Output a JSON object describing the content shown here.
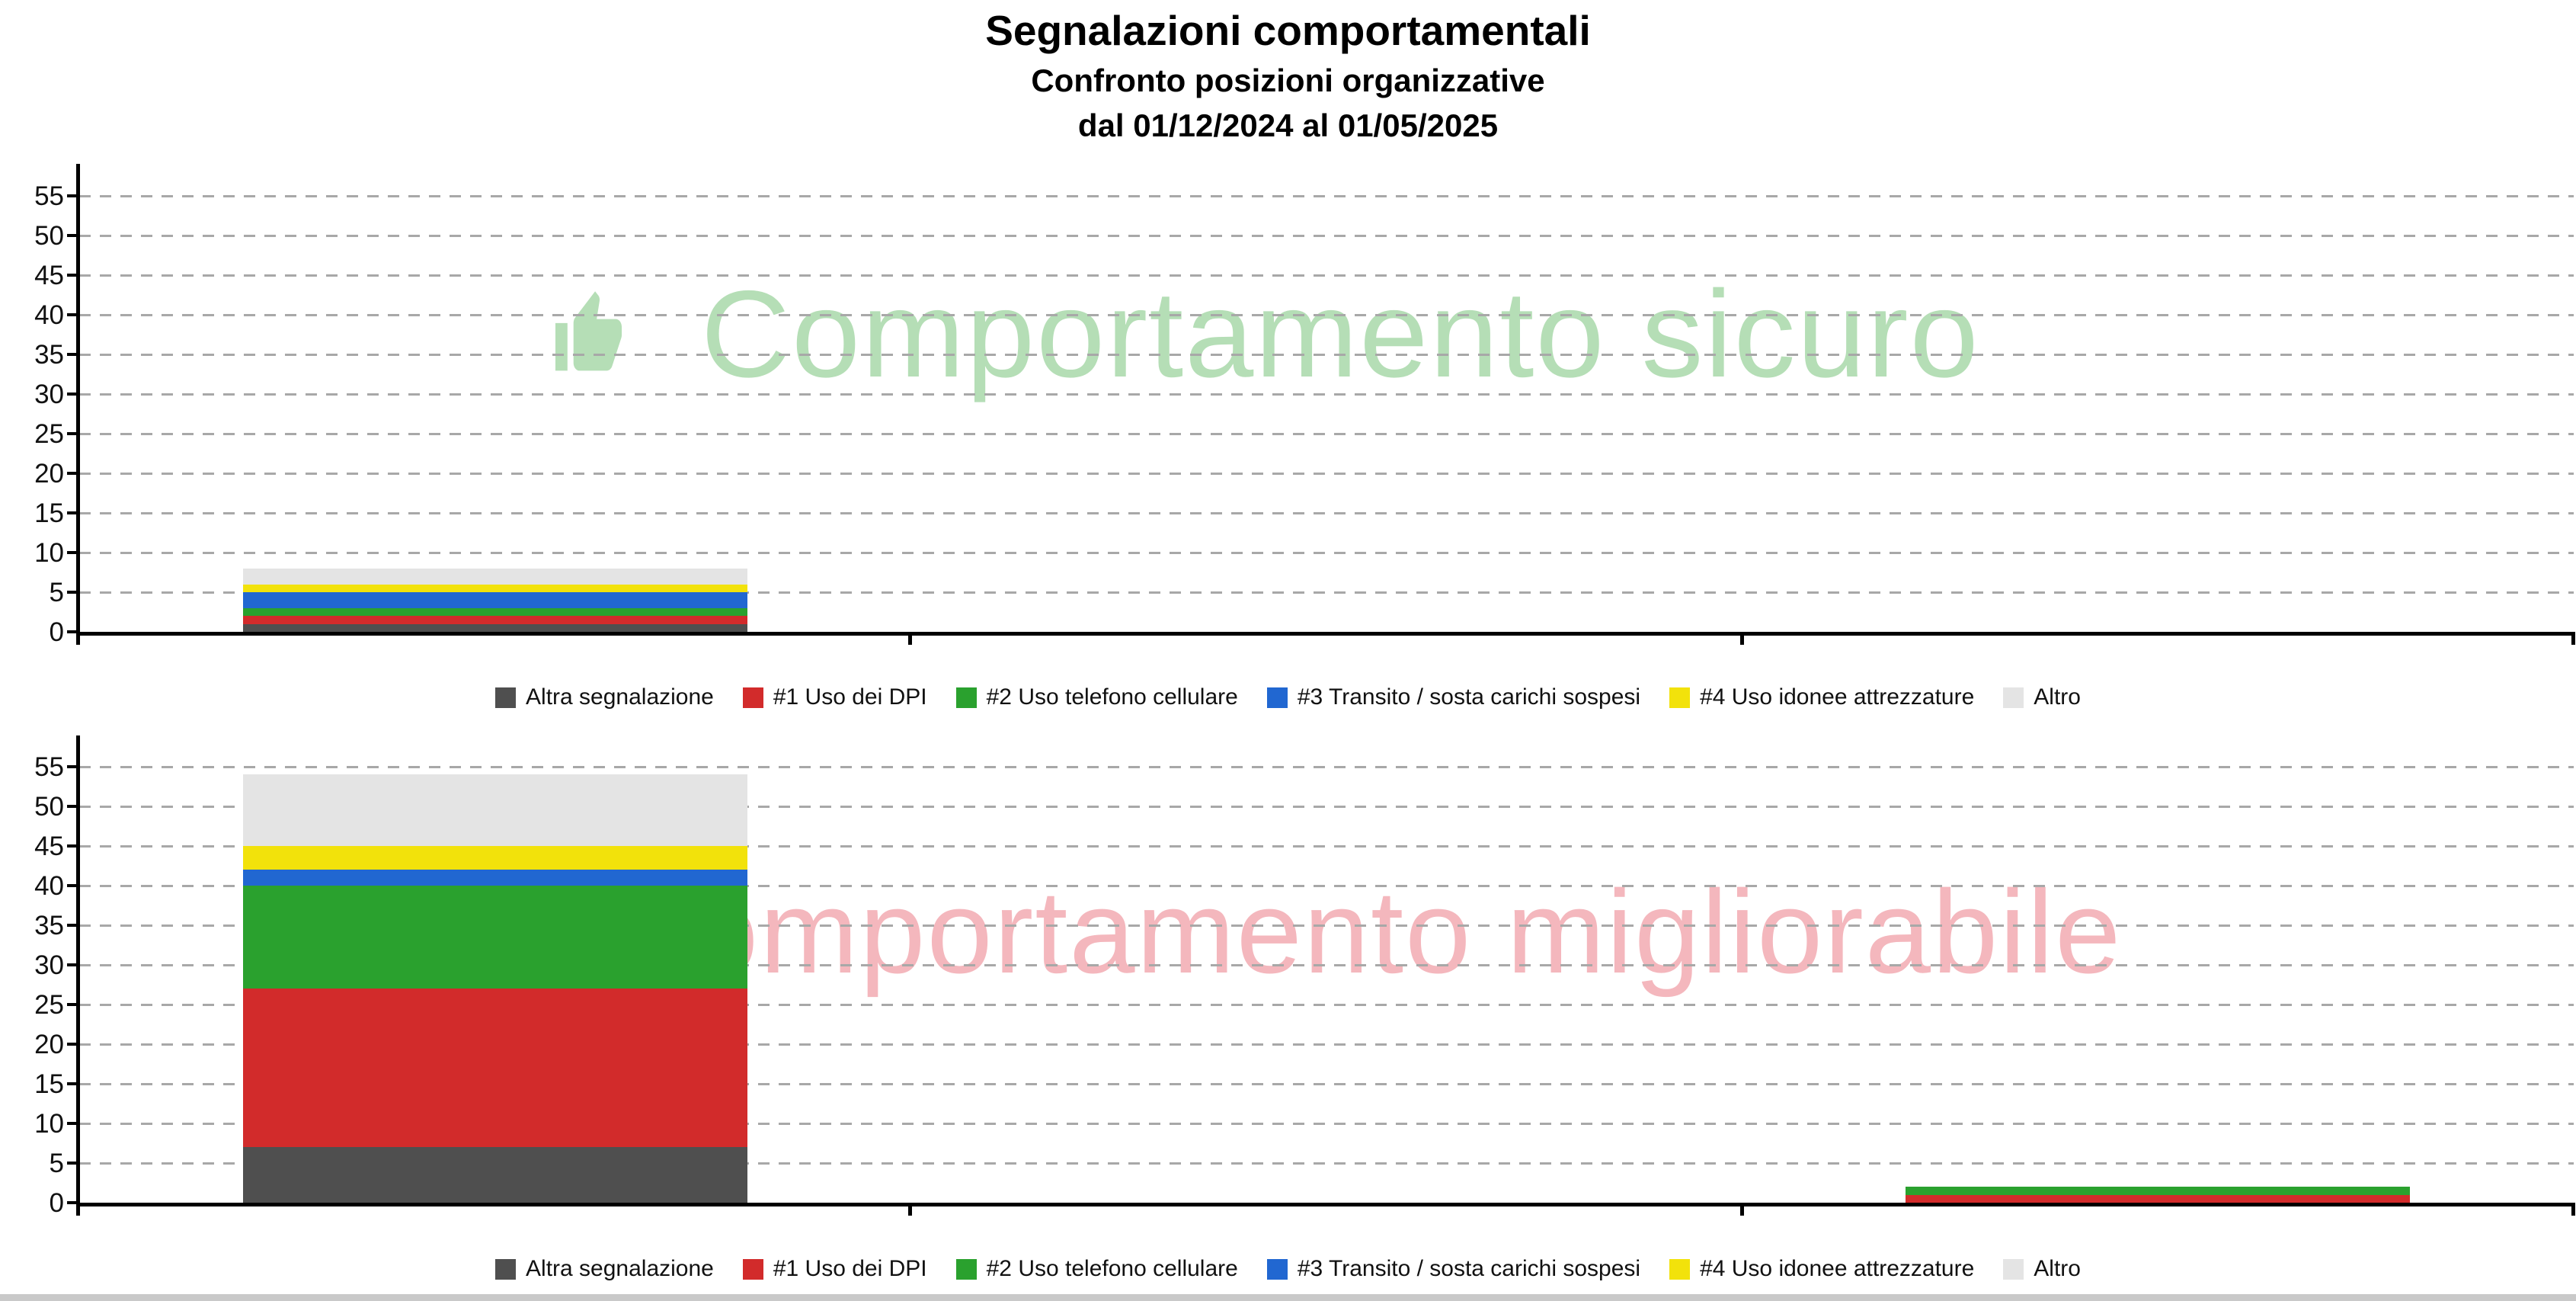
{
  "title": {
    "main": "Segnalazioni comportamentali",
    "sub1": "Confronto posizioni organizzative",
    "sub2": "dal 01/12/2024 al 01/05/2025"
  },
  "legend_labels": [
    "Altra segnalazione",
    "#1 Uso dei DPI",
    "#2 Uso telefono cellulare",
    "#3 Transito / sosta carichi sospesi",
    "#4 Uso idonee attrezzature",
    "Altro"
  ],
  "colors": {
    "altra_segnalazione": "#4f4f4f",
    "uso_dei_dpi": "#d22b2b",
    "uso_telefono_cellulare": "#2aa12e",
    "transito_sosta_carichi_sospesi": "#2167d1",
    "uso_idonee_attrezzature": "#f2e20b",
    "altro": "#e4e4e4",
    "gridline": "#a8a8a8",
    "axis": "#000000",
    "watermark_safe": "#b5deb6",
    "watermark_improvable": "#f4b7bd",
    "bottom_strip": "#c9c9c9"
  },
  "chart_data": [
    {
      "type": "bar",
      "stacked": true,
      "watermark": {
        "text": "Comportamento sicuro",
        "icon": "thumbs-up-icon",
        "color": "#b5deb6"
      },
      "categories": [
        "",
        "",
        ""
      ],
      "series": [
        {
          "name": "Altra segnalazione",
          "color": "#4f4f4f",
          "values": [
            1,
            0,
            0
          ]
        },
        {
          "name": "#1 Uso dei DPI",
          "color": "#d22b2b",
          "values": [
            1,
            0,
            0
          ]
        },
        {
          "name": "#2 Uso telefono cellulare",
          "color": "#2aa12e",
          "values": [
            1,
            0,
            0
          ]
        },
        {
          "name": "#3 Transito / sosta carichi sospesi",
          "color": "#2167d1",
          "values": [
            2,
            0,
            0
          ]
        },
        {
          "name": "#4 Uso idonee attrezzature",
          "color": "#f2e20b",
          "values": [
            1,
            0,
            0
          ]
        },
        {
          "name": "Altro",
          "color": "#e4e4e4",
          "values": [
            2,
            0,
            0
          ]
        }
      ],
      "bar_totals": [
        8,
        0,
        0
      ],
      "ylim": [
        0,
        59
      ],
      "yticks": [
        0,
        5,
        10,
        15,
        20,
        25,
        30,
        35,
        40,
        45,
        50,
        55
      ],
      "grid": "dashed-horizontal",
      "legend_position": "bottom"
    },
    {
      "type": "bar",
      "stacked": true,
      "watermark": {
        "text": "Comportamento migliorabile",
        "icon": "thumbs-down-icon",
        "color": "#f4b7bd"
      },
      "categories": [
        "",
        "",
        ""
      ],
      "series": [
        {
          "name": "Altra segnalazione",
          "color": "#4f4f4f",
          "values": [
            7,
            0,
            0
          ]
        },
        {
          "name": "#1 Uso dei DPI",
          "color": "#d22b2b",
          "values": [
            20,
            0,
            1
          ]
        },
        {
          "name": "#2 Uso telefono cellulare",
          "color": "#2aa12e",
          "values": [
            13,
            0,
            1
          ]
        },
        {
          "name": "#3 Transito / sosta carichi sospesi",
          "color": "#2167d1",
          "values": [
            2,
            0,
            0
          ]
        },
        {
          "name": "#4 Uso idonee attrezzature",
          "color": "#f2e20b",
          "values": [
            3,
            0,
            0
          ]
        },
        {
          "name": "Altro",
          "color": "#e4e4e4",
          "values": [
            9,
            0,
            0
          ]
        }
      ],
      "bar_totals": [
        54,
        0,
        2
      ],
      "ylim": [
        0,
        59
      ],
      "yticks": [
        0,
        5,
        10,
        15,
        20,
        25,
        30,
        35,
        40,
        45,
        50,
        55
      ],
      "grid": "dashed-horizontal",
      "legend_position": "bottom"
    }
  ]
}
